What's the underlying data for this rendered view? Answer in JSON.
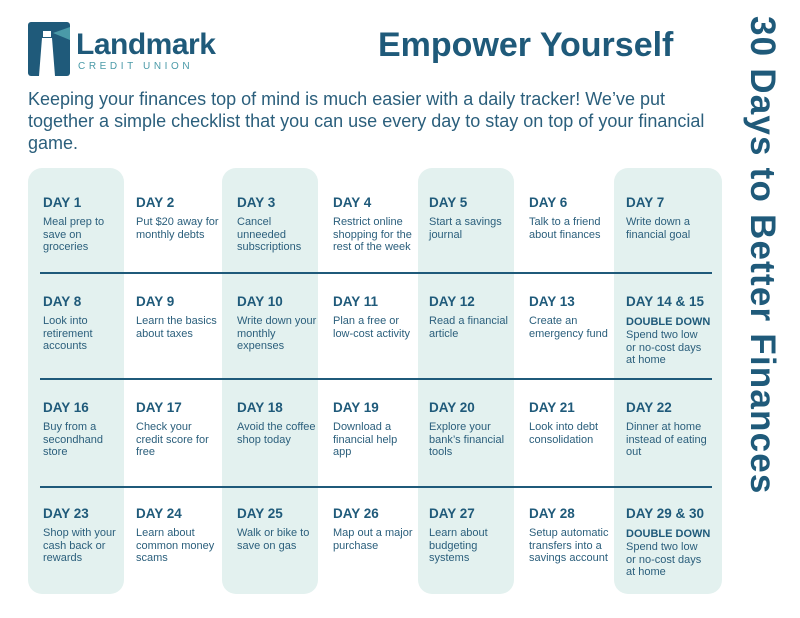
{
  "logo": {
    "name": "Landmark",
    "sub": "CREDIT UNION"
  },
  "title": "Empower Yourself",
  "side_title": "30 Days to Better Finances",
  "intro": "Keeping your finances top of mind is much easier with a daily tracker! We’ve put together a simple checklist that you can use every day to stay on top of your financial game.",
  "days": [
    {
      "label": "DAY 1",
      "text": "Meal prep to save on groceries"
    },
    {
      "label": "DAY 2",
      "text": "Put $20 away for monthly debts"
    },
    {
      "label": "DAY 3",
      "text": "Cancel unneeded subscriptions"
    },
    {
      "label": "DAY 4",
      "text": "Restrict online shopping for the rest of the week"
    },
    {
      "label": "DAY 5",
      "text": "Start a savings journal"
    },
    {
      "label": "DAY 6",
      "text": "Talk to a friend about finances"
    },
    {
      "label": "DAY 7",
      "text": "Write down a financial goal"
    },
    {
      "label": "DAY 8",
      "text": "Look into retirement accounts"
    },
    {
      "label": "DAY 9",
      "text": "Learn the basics about taxes"
    },
    {
      "label": "DAY 10",
      "text": "Write down your monthly expenses"
    },
    {
      "label": "DAY 11",
      "text": "Plan a free or low-cost activity"
    },
    {
      "label": "DAY 12",
      "text": "Read a financial article"
    },
    {
      "label": "DAY 13",
      "text": "Create an emergency fund"
    },
    {
      "label": "DAY 14 & 15",
      "note": "DOUBLE DOWN",
      "text": "Spend two low or no-cost days at home"
    },
    {
      "label": "DAY 16",
      "text": "Buy from a secondhand store"
    },
    {
      "label": "DAY 17",
      "text": "Check your credit score for free"
    },
    {
      "label": "DAY 18",
      "text": "Avoid the coffee shop today"
    },
    {
      "label": "DAY 19",
      "text": "Download a financial help app"
    },
    {
      "label": "DAY 20",
      "text": "Explore your bank’s financial tools"
    },
    {
      "label": "DAY 21",
      "text": "Look into debt consolidation"
    },
    {
      "label": "DAY 22",
      "text": "Dinner at home instead of eating out"
    },
    {
      "label": "DAY 23",
      "text": "Shop with your cash back or rewards"
    },
    {
      "label": "DAY 24",
      "text": "Learn about common money scams"
    },
    {
      "label": "DAY 25",
      "text": "Walk or bike to save on gas"
    },
    {
      "label": "DAY 26",
      "text": "Map out a major purchase"
    },
    {
      "label": "DAY 27",
      "text": "Learn about budgeting systems"
    },
    {
      "label": "DAY 28",
      "text": "Setup automatic transfers into a savings account"
    },
    {
      "label": "DAY 29 & 30",
      "note": "DOUBLE DOWN",
      "text": "Spend two low or no-cost days at home"
    }
  ]
}
